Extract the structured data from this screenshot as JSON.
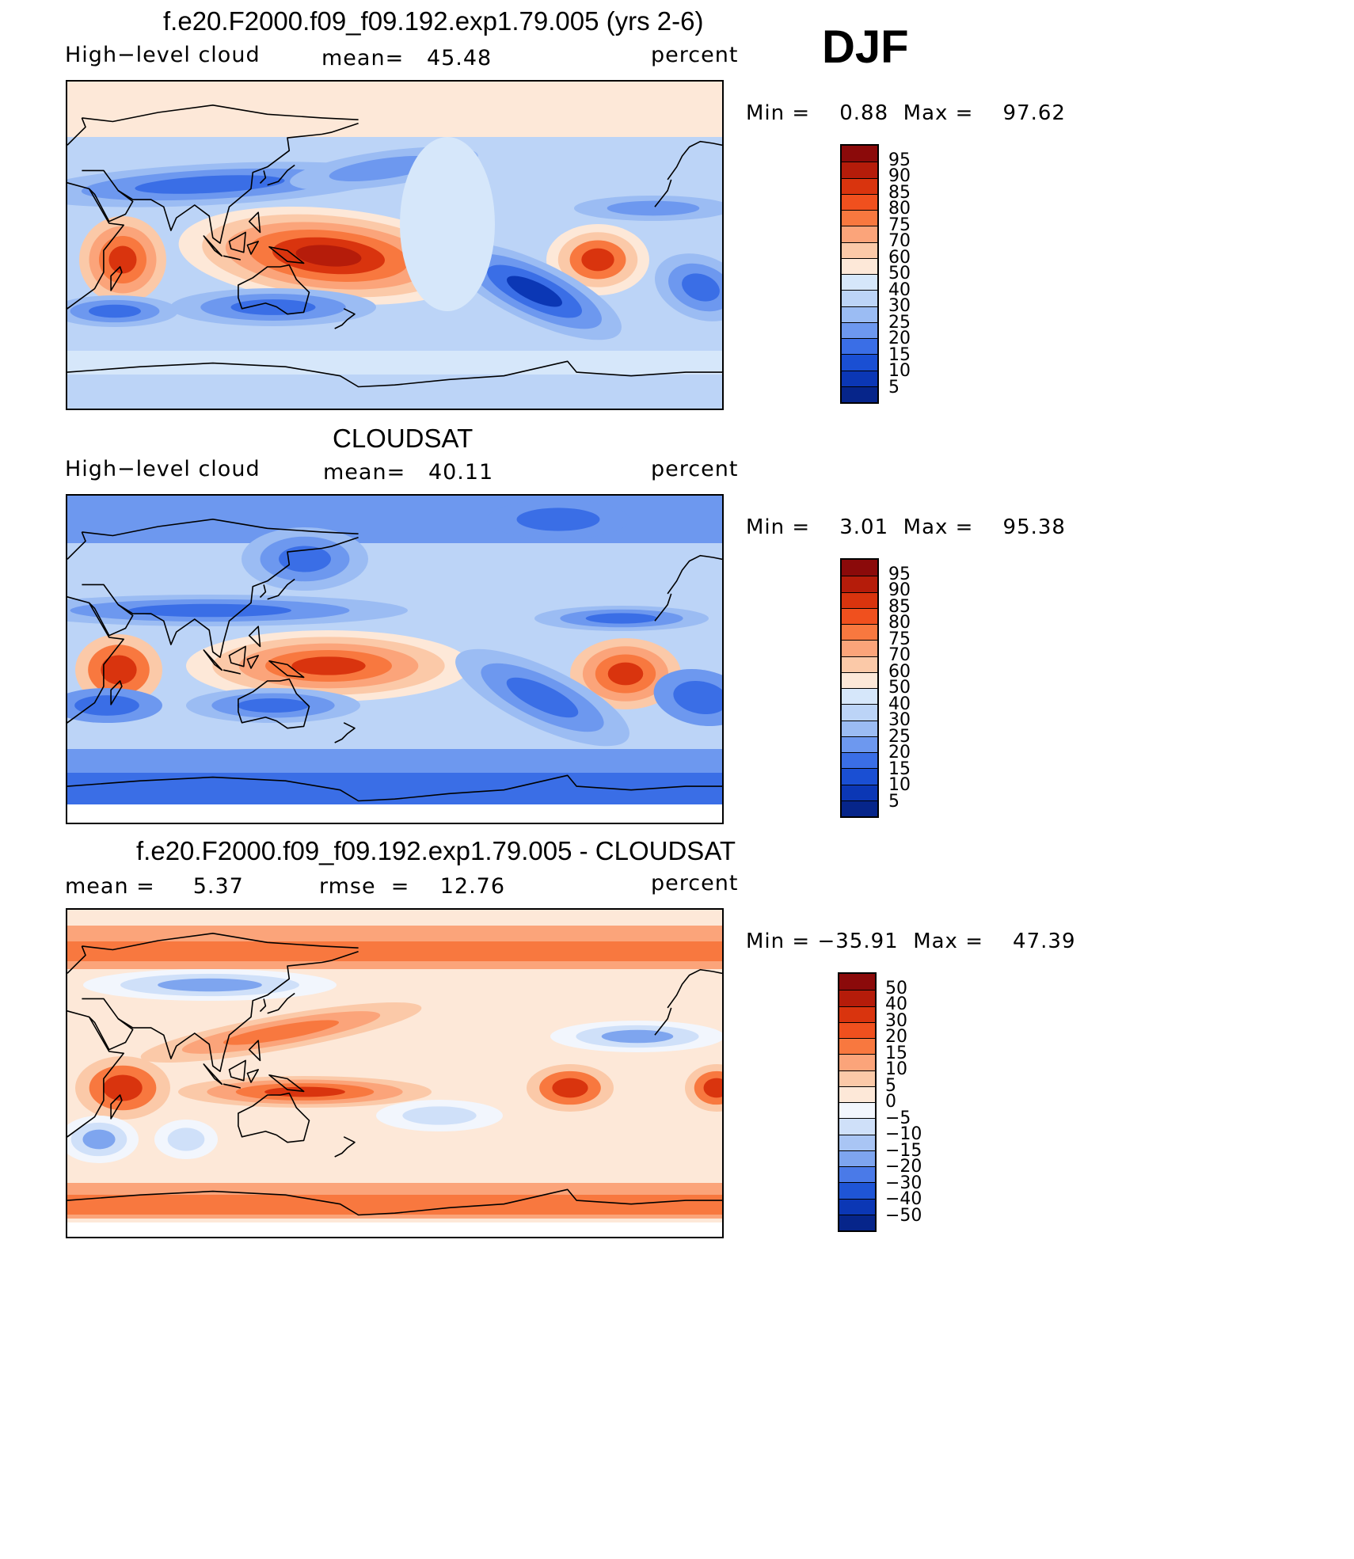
{
  "season_label": "DJF",
  "coastline_color": "#000000",
  "panels": [
    {
      "title": "f.e20.F2000.f09_f09.192.exp1.79.005 (yrs 2-6)",
      "left_label": "High−level cloud",
      "center_label": "mean=   45.48",
      "right_label": "percent",
      "minmax": "Min =    0.88  Max =    97.62",
      "colorbar": {
        "levels": [
          "95",
          "90",
          "85",
          "80",
          "75",
          "70",
          "60",
          "50",
          "40",
          "30",
          "25",
          "20",
          "15",
          "10",
          "5"
        ],
        "colors": [
          "#8b0a0a",
          "#b51c0a",
          "#d9340e",
          "#f0501e",
          "#f8783f",
          "#fba47a",
          "#fbc9a8",
          "#fde8d8",
          "#d6e7fa",
          "#bcd4f7",
          "#9bbcf3",
          "#6d98ef",
          "#3a6ee6",
          "#1a4fd3",
          "#0b37b5",
          "#06258a"
        ]
      },
      "map_field": "model"
    },
    {
      "title": "CLOUDSAT",
      "left_label": "High−level cloud",
      "center_label": "mean=   40.11",
      "right_label": "percent",
      "minmax": "Min =    3.01  Max =    95.38",
      "colorbar": {
        "levels": [
          "95",
          "90",
          "85",
          "80",
          "75",
          "70",
          "60",
          "50",
          "40",
          "30",
          "25",
          "20",
          "15",
          "10",
          "5"
        ],
        "colors": [
          "#8b0a0a",
          "#b51c0a",
          "#d9340e",
          "#f0501e",
          "#f8783f",
          "#fba47a",
          "#fbc9a8",
          "#fde8d8",
          "#d6e7fa",
          "#bcd4f7",
          "#9bbcf3",
          "#6d98ef",
          "#3a6ee6",
          "#1a4fd3",
          "#0b37b5",
          "#06258a"
        ]
      },
      "map_field": "obs"
    },
    {
      "title": "f.e20.F2000.f09_f09.192.exp1.79.005 - CLOUDSAT",
      "left_label": "mean =     5.37",
      "center_label": "rmse  =    12.76",
      "right_label": "percent",
      "minmax": "Min = −35.91  Max =    47.39",
      "colorbar": {
        "levels": [
          "50",
          "40",
          "30",
          "20",
          "15",
          "10",
          "5",
          "0",
          "−5",
          "−10",
          "−15",
          "−20",
          "−30",
          "−40",
          "−50"
        ],
        "colors": [
          "#8b0a0a",
          "#b51c0a",
          "#d9340e",
          "#f0501e",
          "#f8783f",
          "#fba47a",
          "#fbc9a8",
          "#fde8d8",
          "#f2f6fd",
          "#cfe0f9",
          "#a9c5f4",
          "#7ea5ef",
          "#4a7ae8",
          "#1f55d6",
          "#0b37b5",
          "#06258a"
        ]
      },
      "map_field": "diff"
    }
  ]
}
